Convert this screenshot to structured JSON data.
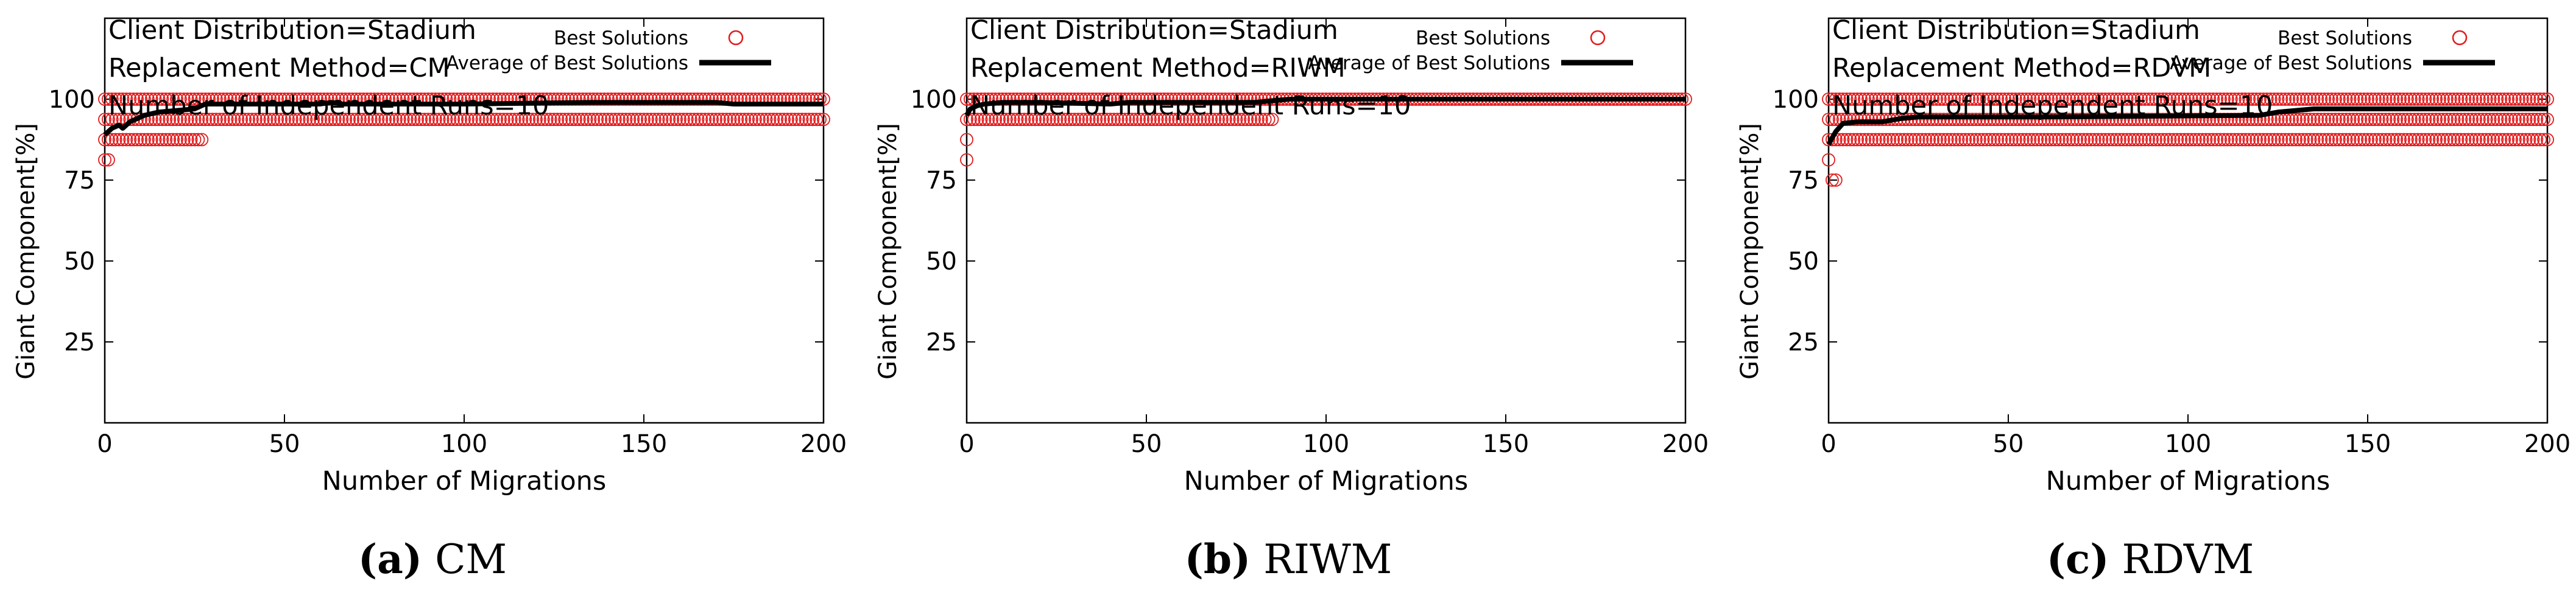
{
  "chart_data": [
    {
      "type": "scatter",
      "caption_letter": "(a)",
      "caption_text": "CM",
      "annotations": [
        "Client Distribution=Stadium",
        "Replacement Method=CM",
        "Number of Independent Runs=10"
      ],
      "xlabel": "Number of Migrations",
      "ylabel": "Giant Component[%]",
      "xlim": [
        0,
        200
      ],
      "ylim": [
        0,
        125
      ],
      "xticks": [
        0,
        50,
        100,
        150,
        200
      ],
      "yticks": [
        25,
        50,
        75,
        100
      ],
      "legend_placement": "top-right",
      "series": [
        {
          "name": "Best Solutions",
          "marker": "open-circle",
          "color": "#e31a1c",
          "bands": [
            {
              "y": 100,
              "x_start": 0,
              "x_end": 200
            },
            {
              "y": 93.75,
              "x_start": 0,
              "x_end": 200
            },
            {
              "y": 87.5,
              "x_start": 0,
              "x_end": 27
            },
            {
              "y": 81.25,
              "x_start": 0,
              "x_end": 1
            }
          ]
        },
        {
          "name": "Average of Best Solutions",
          "color": "#000000",
          "x": [
            0,
            2,
            4,
            5,
            7,
            9,
            11,
            15,
            20,
            25,
            28,
            30,
            60,
            63,
            66,
            100,
            135,
            170,
            175,
            200
          ],
          "y": [
            89,
            91,
            92,
            91,
            93,
            94,
            95,
            96,
            96.5,
            97,
            98.5,
            98.5,
            98.5,
            99,
            98.5,
            98.5,
            99,
            99,
            98.5,
            98.5
          ]
        }
      ]
    },
    {
      "type": "scatter",
      "caption_letter": "(b)",
      "caption_text": "RIWM",
      "annotations": [
        "Client Distribution=Stadium",
        "Replacement Method=RIWM",
        "Number of Independent Runs=10"
      ],
      "xlabel": "Number of Migrations",
      "ylabel": "Giant Component[%]",
      "xlim": [
        0,
        200
      ],
      "ylim": [
        0,
        125
      ],
      "xticks": [
        0,
        50,
        100,
        150,
        200
      ],
      "yticks": [
        25,
        50,
        75,
        100
      ],
      "legend_placement": "top-right",
      "series": [
        {
          "name": "Best Solutions",
          "marker": "open-circle",
          "color": "#e31a1c",
          "bands": [
            {
              "y": 100,
              "x_start": 0,
              "x_end": 200
            },
            {
              "y": 93.75,
              "x_start": 0,
              "x_end": 85
            },
            {
              "y": 87.5,
              "x_start": 0,
              "x_end": 0
            },
            {
              "y": 81.25,
              "x_start": 0,
              "x_end": 0
            }
          ]
        },
        {
          "name": "Average of Best Solutions",
          "color": "#000000",
          "x": [
            0,
            1,
            3,
            5,
            10,
            20,
            40,
            45,
            60,
            80,
            85,
            90,
            200
          ],
          "y": [
            95,
            97,
            98,
            98.5,
            99,
            99,
            98.5,
            99,
            99,
            99,
            99.5,
            100,
            100
          ]
        }
      ]
    },
    {
      "type": "scatter",
      "caption_letter": "(c)",
      "caption_text": "RDVM",
      "annotations": [
        "Client Distribution=Stadium",
        "Replacement Method=RDVM",
        "Number of Independent Runs=10"
      ],
      "xlabel": "Number of Migrations",
      "ylabel": "Giant Component[%]",
      "xlim": [
        0,
        200
      ],
      "ylim": [
        0,
        125
      ],
      "xticks": [
        0,
        50,
        100,
        150,
        200
      ],
      "yticks": [
        25,
        50,
        75,
        100
      ],
      "legend_placement": "top-right",
      "series": [
        {
          "name": "Best Solutions",
          "marker": "open-circle",
          "color": "#e31a1c",
          "bands": [
            {
              "y": 100,
              "x_start": 0,
              "x_end": 200
            },
            {
              "y": 93.75,
              "x_start": 0,
              "x_end": 200
            },
            {
              "y": 87.5,
              "x_start": 0,
              "x_end": 200
            },
            {
              "y": 81.25,
              "x_start": 0,
              "x_end": 0
            },
            {
              "y": 75,
              "x_start": 1,
              "x_end": 2
            }
          ]
        },
        {
          "name": "Average of Best Solutions",
          "color": "#000000",
          "x": [
            0,
            2,
            4,
            8,
            15,
            20,
            25,
            60,
            120,
            125,
            130,
            135,
            140,
            200
          ],
          "y": [
            86,
            90,
            92.5,
            93,
            93,
            94,
            94.5,
            94.5,
            95,
            96,
            96.5,
            97,
            97,
            97
          ]
        }
      ]
    }
  ]
}
